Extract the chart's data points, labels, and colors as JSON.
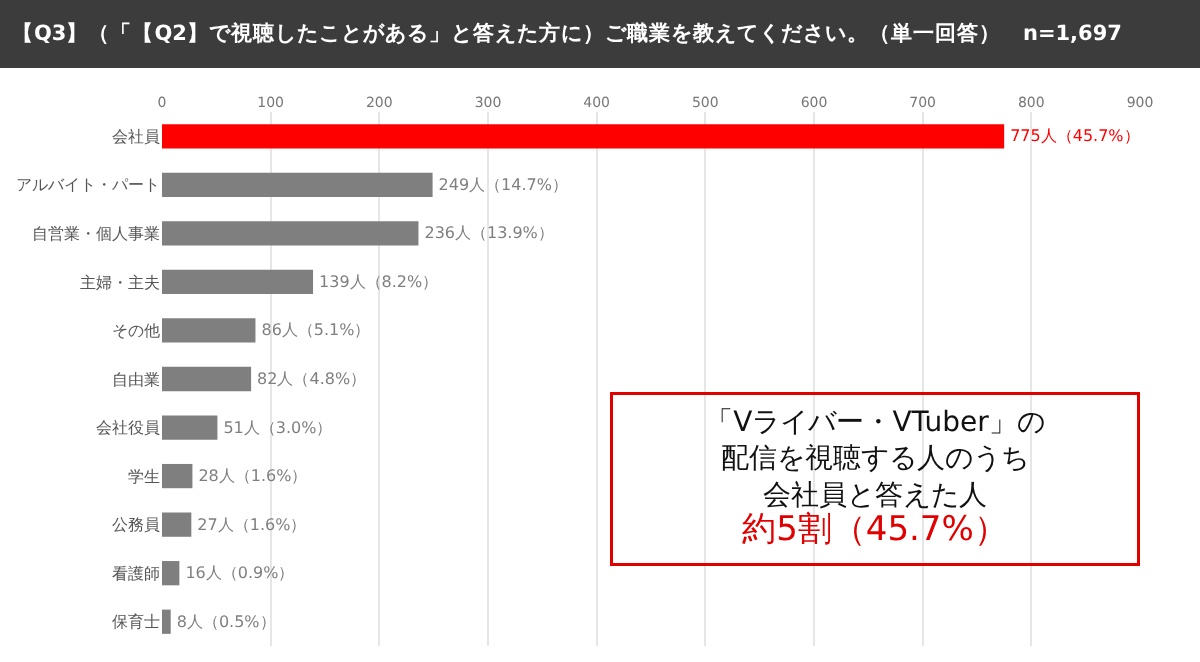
{
  "chart_data": {
    "type": "bar",
    "orientation": "horizontal",
    "title": "【Q3】（「【Q2】で視聴したことがある」と答えた方に）ご職業を教えてください。（単一回答）　n=1,697",
    "categories": [
      "会社員",
      "アルバイト・パート",
      "自営業・個人事業",
      "主婦・主夫",
      "その他",
      "自由業",
      "会社役員",
      "学生",
      "公務員",
      "看護師",
      "保育士"
    ],
    "values": [
      775,
      249,
      236,
      139,
      86,
      82,
      51,
      28,
      27,
      16,
      8
    ],
    "value_labels": [
      "775人（45.7%）",
      "249人（14.7%）",
      "236人（13.9%）",
      "139人（8.2%）",
      "86人（5.1%）",
      "82人（4.8%）",
      "51人（3.0%）",
      "28人（1.6%）",
      "27人（1.6%）",
      "16人（0.9%）",
      "8人（0.5%）"
    ],
    "colors": [
      "#ff0000",
      "#7f7f7f",
      "#7f7f7f",
      "#7f7f7f",
      "#7f7f7f",
      "#7f7f7f",
      "#7f7f7f",
      "#7f7f7f",
      "#7f7f7f",
      "#7f7f7f",
      "#7f7f7f"
    ],
    "xlim": [
      0,
      900
    ],
    "xticks": [
      0,
      100,
      200,
      300,
      400,
      500,
      600,
      700,
      800,
      900
    ],
    "grid": "x",
    "legend": false,
    "annotations": [
      "「Vライバー・VTuber」の",
      "配信を視聴する人のうち",
      "会社員と答えた人",
      "約5割（45.7%）"
    ]
  }
}
